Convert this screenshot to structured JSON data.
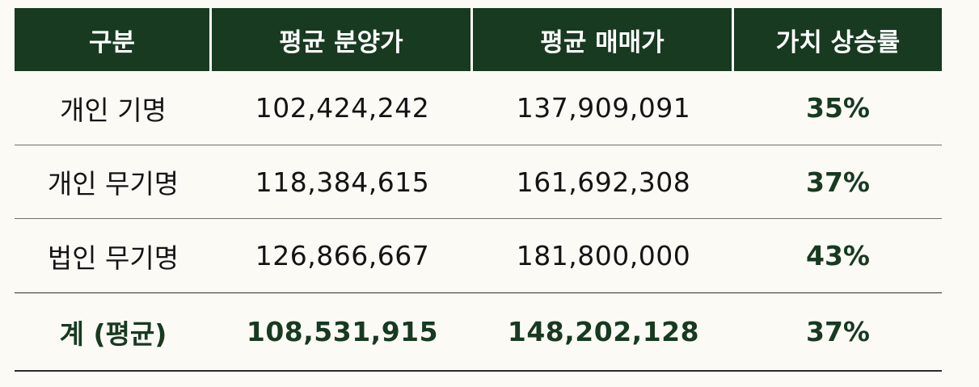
{
  "table": {
    "headers": [
      "구분",
      "평균 분양가",
      "평균 매매가",
      "가치 상승률"
    ],
    "rows": [
      {
        "category": "개인 기명",
        "avg_sale_price": "102,424,242",
        "avg_trade_price": "137,909,091",
        "rate": "35%"
      },
      {
        "category": "개인 무기명",
        "avg_sale_price": "118,384,615",
        "avg_trade_price": "161,692,308",
        "rate": "37%"
      },
      {
        "category": "법인 무기명",
        "avg_sale_price": "126,866,667",
        "avg_trade_price": "181,800,000",
        "rate": "43%"
      }
    ],
    "total": {
      "category": "계 (평균)",
      "avg_sale_price": "108,531,915",
      "avg_trade_price": "148,202,128",
      "rate": "37%"
    }
  },
  "colors": {
    "header_bg": "#173a21",
    "accent_text": "#173a21",
    "background": "#fbfaf5"
  }
}
